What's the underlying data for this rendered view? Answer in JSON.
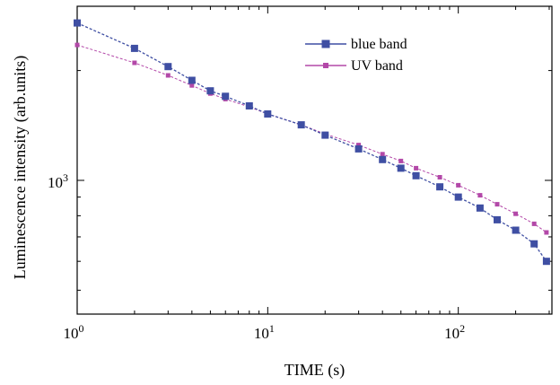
{
  "chart_data": {
    "type": "scatter",
    "xscale": "log",
    "yscale": "log",
    "xlabel": "TIME (s)",
    "ylabel": "Luminescence intensity (arb.units)",
    "xlim": [
      1,
      310
    ],
    "ylim": [
      430,
      3000
    ],
    "x_ticks": [
      {
        "base": "10",
        "exp": "0",
        "value": 1
      },
      {
        "base": "10",
        "exp": "1",
        "value": 10
      },
      {
        "base": "10",
        "exp": "2",
        "value": 100
      }
    ],
    "y_ticks": [
      {
        "base": "10",
        "exp": "3",
        "value": 1000
      }
    ],
    "legend_position": "top-right",
    "series": [
      {
        "name": "blue band",
        "color": "#3f4fa3",
        "marker": "square-large",
        "points": [
          [
            1,
            2700
          ],
          [
            2,
            2300
          ],
          [
            3,
            2050
          ],
          [
            4,
            1880
          ],
          [
            5,
            1760
          ],
          [
            6,
            1700
          ],
          [
            8,
            1600
          ],
          [
            10,
            1520
          ],
          [
            15,
            1420
          ],
          [
            20,
            1330
          ],
          [
            30,
            1220
          ],
          [
            40,
            1140
          ],
          [
            50,
            1080
          ],
          [
            60,
            1030
          ],
          [
            80,
            960
          ],
          [
            100,
            900
          ],
          [
            130,
            840
          ],
          [
            160,
            780
          ],
          [
            200,
            730
          ],
          [
            250,
            670
          ],
          [
            290,
            600
          ]
        ]
      },
      {
        "name": "UV band",
        "color": "#b348a8",
        "marker": "square-small",
        "points": [
          [
            1,
            2350
          ],
          [
            2,
            2100
          ],
          [
            3,
            1940
          ],
          [
            4,
            1820
          ],
          [
            5,
            1730
          ],
          [
            6,
            1670
          ],
          [
            8,
            1590
          ],
          [
            10,
            1520
          ],
          [
            15,
            1420
          ],
          [
            20,
            1340
          ],
          [
            30,
            1250
          ],
          [
            40,
            1180
          ],
          [
            50,
            1130
          ],
          [
            60,
            1080
          ],
          [
            80,
            1020
          ],
          [
            100,
            970
          ],
          [
            130,
            910
          ],
          [
            160,
            860
          ],
          [
            200,
            810
          ],
          [
            250,
            760
          ],
          [
            290,
            720
          ]
        ]
      }
    ]
  }
}
